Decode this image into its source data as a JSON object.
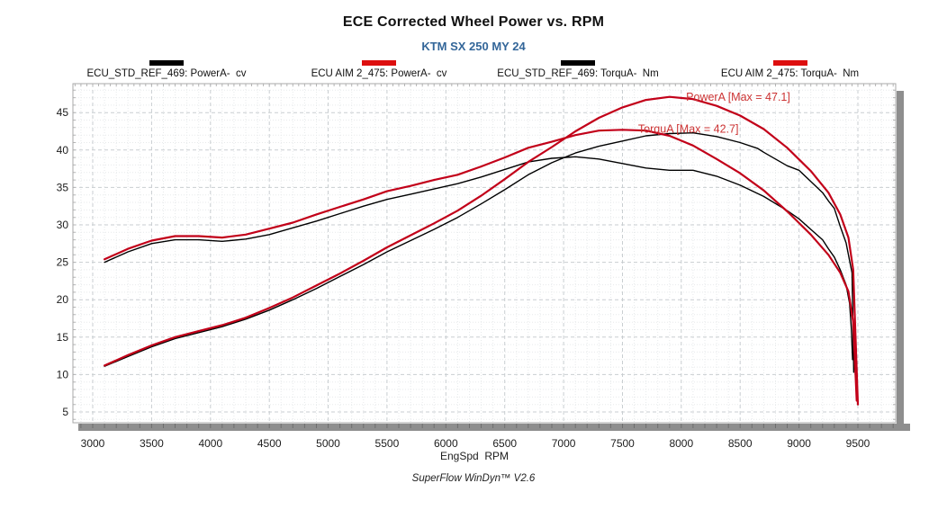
{
  "header": {
    "title": "ECE Corrected Wheel Power vs. RPM",
    "subtitle": "KTM SX 250 MY 24",
    "subtitle_color": "#336699"
  },
  "legend": {
    "items": [
      {
        "label": "ECU_STD_REF_469: PowerA-  cv",
        "color": "#000000"
      },
      {
        "label": "ECU AIM 2_475: PowerA-  cv",
        "color": "#dd0f0f"
      },
      {
        "label": "ECU_STD_REF_469: TorquA-  Nm",
        "color": "#000000"
      },
      {
        "label": "ECU AIM 2_475: TorquA-  Nm",
        "color": "#dd0f0f"
      }
    ]
  },
  "footer": {
    "text": "SuperFlow WinDyn™ V2.6"
  },
  "chart_data": {
    "type": "line",
    "title": "ECE Corrected Wheel Power vs. RPM",
    "subtitle": "KTM SX 250 MY 24",
    "xlabel": "EngSpd  RPM",
    "ylabel": "",
    "xlim": [
      2832,
      9820
    ],
    "ylim": [
      3.6,
      48.9
    ],
    "x_ticks": [
      3000,
      3500,
      4000,
      4500,
      5000,
      5500,
      6000,
      6500,
      7000,
      7500,
      8000,
      8500,
      9000,
      9500
    ],
    "y_ticks": [
      5,
      10,
      15,
      20,
      25,
      30,
      35,
      40,
      45
    ],
    "grid": {
      "major_x_step": 500,
      "minor_x_step": 100,
      "major_y_step": 5,
      "minor_y_step": 1,
      "edge_tick_x_step": 50,
      "grid_on": true
    },
    "legend_position": "top",
    "annotations": [
      {
        "text": "PowerA [Max = 47.1]",
        "x": 8483,
        "y": 46.6,
        "color": "#cc3333"
      },
      {
        "text": "TorquA [Max = 42.7]",
        "x": 8060,
        "y": 42.3,
        "color": "#cc3333"
      }
    ],
    "max_labels": {
      "power_max_cv": 47.1,
      "torque_max_nm": 42.7
    },
    "series": [
      {
        "name": "ECU_STD_REF_469: TorquA (Nm)",
        "color": "#000000",
        "width": 1.4,
        "points": [
          [
            3100,
            25.0
          ],
          [
            3300,
            26.4
          ],
          [
            3500,
            27.5
          ],
          [
            3700,
            28.0
          ],
          [
            3900,
            28.0
          ],
          [
            4100,
            27.8
          ],
          [
            4300,
            28.1
          ],
          [
            4500,
            28.7
          ],
          [
            4700,
            29.6
          ],
          [
            4900,
            30.5
          ],
          [
            5100,
            31.5
          ],
          [
            5300,
            32.5
          ],
          [
            5500,
            33.4
          ],
          [
            5700,
            34.1
          ],
          [
            5900,
            34.8
          ],
          [
            6100,
            35.5
          ],
          [
            6300,
            36.4
          ],
          [
            6500,
            37.4
          ],
          [
            6700,
            38.4
          ],
          [
            6900,
            38.9
          ],
          [
            7100,
            39.1
          ],
          [
            7300,
            38.8
          ],
          [
            7500,
            38.2
          ],
          [
            7700,
            37.6
          ],
          [
            7900,
            37.3
          ],
          [
            8100,
            37.3
          ],
          [
            8300,
            36.5
          ],
          [
            8500,
            35.3
          ],
          [
            8700,
            33.8
          ],
          [
            8900,
            31.9
          ],
          [
            9000,
            30.8
          ],
          [
            9100,
            29.4
          ],
          [
            9200,
            28.0
          ],
          [
            9250,
            26.8
          ],
          [
            9300,
            25.7
          ],
          [
            9350,
            24.0
          ],
          [
            9400,
            22.0
          ],
          [
            9430,
            19.5
          ],
          [
            9445,
            16.0
          ],
          [
            9455,
            12.0
          ]
        ]
      },
      {
        "name": "ECU_STD_REF_469: PowerA (cv)",
        "color": "#000000",
        "width": 1.4,
        "points": [
          [
            3100,
            11.1
          ],
          [
            3300,
            12.4
          ],
          [
            3500,
            13.7
          ],
          [
            3700,
            14.8
          ],
          [
            3900,
            15.6
          ],
          [
            4100,
            16.4
          ],
          [
            4300,
            17.4
          ],
          [
            4500,
            18.6
          ],
          [
            4700,
            20.0
          ],
          [
            4900,
            21.5
          ],
          [
            5100,
            23.1
          ],
          [
            5300,
            24.7
          ],
          [
            5500,
            26.4
          ],
          [
            5700,
            27.9
          ],
          [
            5900,
            29.4
          ],
          [
            6100,
            31.0
          ],
          [
            6300,
            32.8
          ],
          [
            6500,
            34.7
          ],
          [
            6700,
            36.7
          ],
          [
            6900,
            38.3
          ],
          [
            7100,
            39.6
          ],
          [
            7300,
            40.5
          ],
          [
            7500,
            41.2
          ],
          [
            7700,
            41.9
          ],
          [
            7900,
            42.2
          ],
          [
            8100,
            42.3
          ],
          [
            8300,
            41.8
          ],
          [
            8500,
            41.0
          ],
          [
            8650,
            40.2
          ],
          [
            8700,
            39.7
          ],
          [
            8900,
            37.9
          ],
          [
            8950,
            37.6
          ],
          [
            9000,
            37.3
          ],
          [
            9100,
            35.8
          ],
          [
            9200,
            34.3
          ],
          [
            9250,
            33.2
          ],
          [
            9300,
            32.2
          ],
          [
            9350,
            29.8
          ],
          [
            9400,
            27.6
          ],
          [
            9430,
            25.2
          ],
          [
            9450,
            23.6
          ],
          [
            9465,
            10.3
          ]
        ]
      },
      {
        "name": "ECU AIM 2_475: TorquA (Nm)",
        "color": "#c20019",
        "width": 2.2,
        "points": [
          [
            3100,
            25.4
          ],
          [
            3300,
            26.8
          ],
          [
            3500,
            27.9
          ],
          [
            3700,
            28.5
          ],
          [
            3900,
            28.5
          ],
          [
            4100,
            28.3
          ],
          [
            4300,
            28.7
          ],
          [
            4500,
            29.5
          ],
          [
            4700,
            30.3
          ],
          [
            4900,
            31.4
          ],
          [
            5100,
            32.4
          ],
          [
            5300,
            33.4
          ],
          [
            5500,
            34.5
          ],
          [
            5700,
            35.2
          ],
          [
            5900,
            36.0
          ],
          [
            6100,
            36.7
          ],
          [
            6300,
            37.8
          ],
          [
            6500,
            39.0
          ],
          [
            6700,
            40.3
          ],
          [
            6900,
            41.1
          ],
          [
            7100,
            42.0
          ],
          [
            7300,
            42.6
          ],
          [
            7500,
            42.7
          ],
          [
            7700,
            42.6
          ],
          [
            7900,
            41.9
          ],
          [
            8100,
            40.6
          ],
          [
            8300,
            38.8
          ],
          [
            8500,
            36.9
          ],
          [
            8700,
            34.6
          ],
          [
            8900,
            31.8
          ],
          [
            9100,
            28.7
          ],
          [
            9250,
            26.0
          ],
          [
            9350,
            23.6
          ],
          [
            9420,
            21.1
          ],
          [
            9460,
            17.0
          ],
          [
            9480,
            10.0
          ],
          [
            9490,
            6.5
          ]
        ]
      },
      {
        "name": "ECU AIM 2_475: PowerA (cv)",
        "color": "#c20019",
        "width": 2.2,
        "points": [
          [
            3100,
            11.2
          ],
          [
            3300,
            12.6
          ],
          [
            3500,
            13.9
          ],
          [
            3700,
            15.0
          ],
          [
            3900,
            15.8
          ],
          [
            4100,
            16.6
          ],
          [
            4300,
            17.6
          ],
          [
            4500,
            18.9
          ],
          [
            4700,
            20.3
          ],
          [
            4900,
            21.9
          ],
          [
            5100,
            23.5
          ],
          [
            5300,
            25.2
          ],
          [
            5500,
            27.0
          ],
          [
            5700,
            28.6
          ],
          [
            5900,
            30.2
          ],
          [
            6100,
            31.9
          ],
          [
            6300,
            33.9
          ],
          [
            6500,
            36.1
          ],
          [
            6700,
            38.4
          ],
          [
            6900,
            40.4
          ],
          [
            7100,
            42.5
          ],
          [
            7300,
            44.3
          ],
          [
            7500,
            45.7
          ],
          [
            7700,
            46.7
          ],
          [
            7900,
            47.1
          ],
          [
            8100,
            46.8
          ],
          [
            8300,
            45.9
          ],
          [
            8500,
            44.6
          ],
          [
            8700,
            42.8
          ],
          [
            8900,
            40.3
          ],
          [
            9100,
            37.2
          ],
          [
            9250,
            34.3
          ],
          [
            9350,
            31.4
          ],
          [
            9420,
            28.3
          ],
          [
            9460,
            24.0
          ],
          [
            9480,
            15.0
          ],
          [
            9500,
            6.0
          ]
        ]
      }
    ]
  }
}
